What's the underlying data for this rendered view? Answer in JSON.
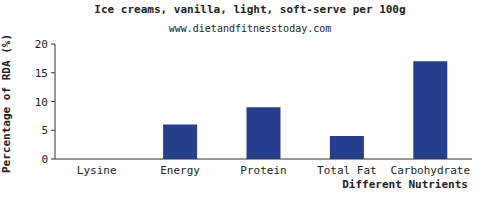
{
  "chart_data": {
    "type": "bar",
    "title": "Ice creams, vanilla, light, soft-serve per 100g",
    "subtitle": "www.dietandfitnesstoday.com",
    "x_label": "Different Nutrients",
    "y_label": "Percentage of RDA (%)",
    "categories": [
      "Lysine",
      "Energy",
      "Protein",
      "Total Fat",
      "Carbohydrate"
    ],
    "values": [
      0,
      6,
      9,
      4,
      17
    ],
    "color": "#263f8c",
    "ylim": [
      0,
      20
    ],
    "yticks": [
      0,
      5,
      10,
      15,
      20
    ],
    "grid": false
  }
}
